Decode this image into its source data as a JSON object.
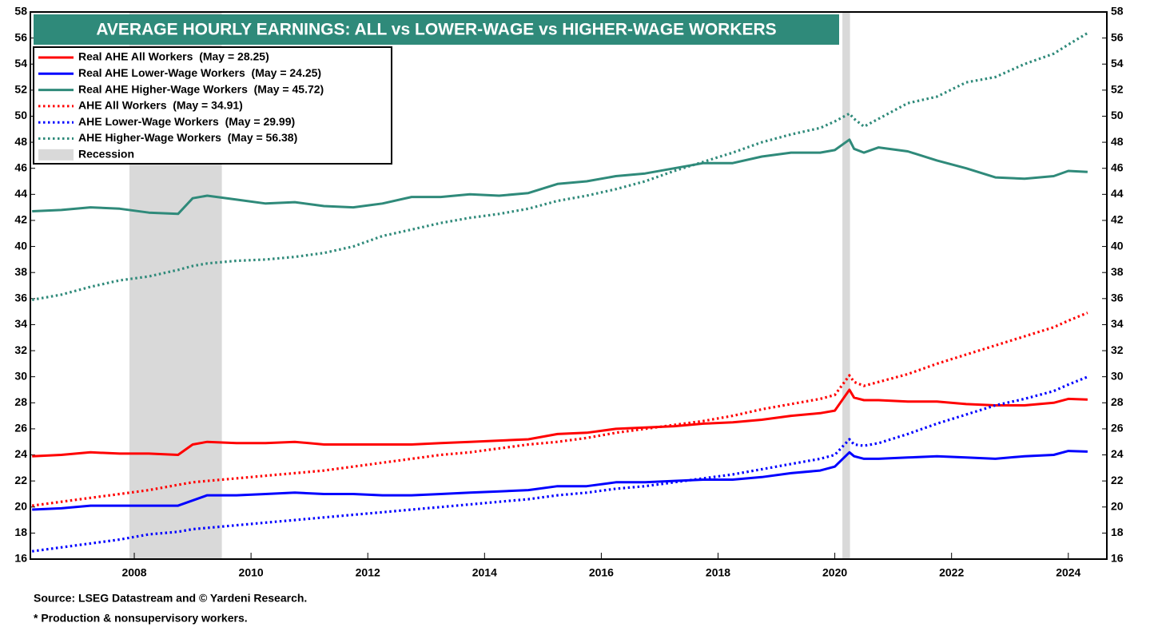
{
  "chart_data": {
    "type": "line",
    "title": "AVERAGE HOURLY EARNINGS: ALL vs LOWER-WAGE vs HIGHER-WAGE WORKERS",
    "source": "Source: LSEG Datastream and © Yardeni Research.",
    "footnote": "* Production & nonsupervisory workers.",
    "recession_label": "Recession",
    "recession_color": "#d9d9d9",
    "recessions": [
      [
        2007.917,
        2009.5
      ],
      [
        2020.13,
        2020.26
      ]
    ],
    "xlim": [
      2006.22,
      2024.66
    ],
    "xticks": [
      2008,
      2010,
      2012,
      2014,
      2016,
      2018,
      2020,
      2022,
      2024
    ],
    "ylim": [
      16,
      58
    ],
    "yticks": [
      16,
      18,
      20,
      22,
      24,
      26,
      28,
      30,
      32,
      34,
      36,
      38,
      40,
      42,
      44,
      46,
      48,
      50,
      52,
      54,
      56,
      58
    ],
    "x": [
      2006.25,
      2006.75,
      2007.25,
      2007.75,
      2008.25,
      2008.75,
      2009.0,
      2009.25,
      2009.75,
      2010.25,
      2010.75,
      2011.25,
      2011.75,
      2012.25,
      2012.75,
      2013.25,
      2013.75,
      2014.25,
      2014.75,
      2015.25,
      2015.75,
      2016.25,
      2016.75,
      2017.25,
      2017.75,
      2018.25,
      2018.75,
      2019.25,
      2019.75,
      2020.0,
      2020.25,
      2020.33,
      2020.5,
      2020.75,
      2021.25,
      2021.75,
      2022.25,
      2022.75,
      2023.25,
      2023.75,
      2024.0,
      2024.33
    ],
    "series": [
      {
        "name": "Real AHE All Workers  (May = 28.25)",
        "color": "#ff0000",
        "style": "solid",
        "values": [
          23.9,
          24.0,
          24.2,
          24.1,
          24.1,
          24.0,
          24.8,
          25.0,
          24.9,
          24.9,
          25.0,
          24.8,
          24.8,
          24.8,
          24.8,
          24.9,
          25.0,
          25.1,
          25.2,
          25.6,
          25.7,
          26.0,
          26.1,
          26.2,
          26.4,
          26.5,
          26.7,
          27.0,
          27.2,
          27.4,
          29.0,
          28.4,
          28.2,
          28.2,
          28.1,
          28.1,
          27.9,
          27.8,
          27.8,
          28.0,
          28.3,
          28.25
        ]
      },
      {
        "name": "Real AHE Lower-Wage Workers  (May = 24.25)",
        "color": "#0000ff",
        "style": "solid",
        "values": [
          19.8,
          19.9,
          20.1,
          20.1,
          20.1,
          20.1,
          20.5,
          20.9,
          20.9,
          21.0,
          21.1,
          21.0,
          21.0,
          20.9,
          20.9,
          21.0,
          21.1,
          21.2,
          21.3,
          21.6,
          21.6,
          21.9,
          21.9,
          22.0,
          22.1,
          22.1,
          22.3,
          22.6,
          22.8,
          23.1,
          24.2,
          23.9,
          23.7,
          23.7,
          23.8,
          23.9,
          23.8,
          23.7,
          23.9,
          24.0,
          24.3,
          24.25
        ]
      },
      {
        "name": "Real AHE Higher-Wage Workers  (May = 45.72)",
        "color": "#2f8a7a",
        "style": "solid",
        "values": [
          42.7,
          42.8,
          43.0,
          42.9,
          42.6,
          42.5,
          43.7,
          43.9,
          43.6,
          43.3,
          43.4,
          43.1,
          43.0,
          43.3,
          43.8,
          43.8,
          44.0,
          43.9,
          44.1,
          44.8,
          45.0,
          45.4,
          45.6,
          46.0,
          46.4,
          46.4,
          46.9,
          47.2,
          47.2,
          47.4,
          48.2,
          47.5,
          47.2,
          47.6,
          47.3,
          46.6,
          46.0,
          45.3,
          45.2,
          45.4,
          45.8,
          45.72
        ]
      },
      {
        "name": "AHE All Workers  (May = 34.91)",
        "color": "#ff0000",
        "style": "dotted",
        "values": [
          20.1,
          20.4,
          20.7,
          21.0,
          21.3,
          21.7,
          21.9,
          22.0,
          22.2,
          22.4,
          22.6,
          22.8,
          23.1,
          23.4,
          23.7,
          24.0,
          24.2,
          24.5,
          24.8,
          25.0,
          25.3,
          25.7,
          26.0,
          26.3,
          26.6,
          27.0,
          27.5,
          27.9,
          28.3,
          28.6,
          30.1,
          29.6,
          29.3,
          29.6,
          30.2,
          31.0,
          31.7,
          32.4,
          33.1,
          33.8,
          34.3,
          34.91
        ]
      },
      {
        "name": "AHE Lower-Wage Workers  (May = 29.99)",
        "color": "#0000ff",
        "style": "dotted",
        "values": [
          16.6,
          16.9,
          17.2,
          17.5,
          17.9,
          18.1,
          18.3,
          18.4,
          18.6,
          18.8,
          19.0,
          19.2,
          19.4,
          19.6,
          19.8,
          20.0,
          20.2,
          20.4,
          20.6,
          20.9,
          21.1,
          21.4,
          21.6,
          21.9,
          22.2,
          22.5,
          22.9,
          23.3,
          23.7,
          24.0,
          25.2,
          24.8,
          24.7,
          24.9,
          25.6,
          26.4,
          27.1,
          27.8,
          28.3,
          28.9,
          29.4,
          29.99
        ]
      },
      {
        "name": "AHE Higher-Wage Workers  (May = 56.38)",
        "color": "#2f8a7a",
        "style": "dotted",
        "values": [
          35.9,
          36.3,
          36.9,
          37.4,
          37.7,
          38.2,
          38.5,
          38.7,
          38.9,
          39.0,
          39.2,
          39.5,
          40.0,
          40.8,
          41.3,
          41.8,
          42.2,
          42.5,
          42.9,
          43.5,
          43.9,
          44.4,
          45.0,
          45.8,
          46.5,
          47.2,
          48.0,
          48.6,
          49.1,
          49.6,
          50.2,
          49.8,
          49.2,
          49.8,
          51.0,
          51.5,
          52.6,
          53.0,
          54.0,
          54.8,
          55.5,
          56.38
        ]
      }
    ]
  }
}
